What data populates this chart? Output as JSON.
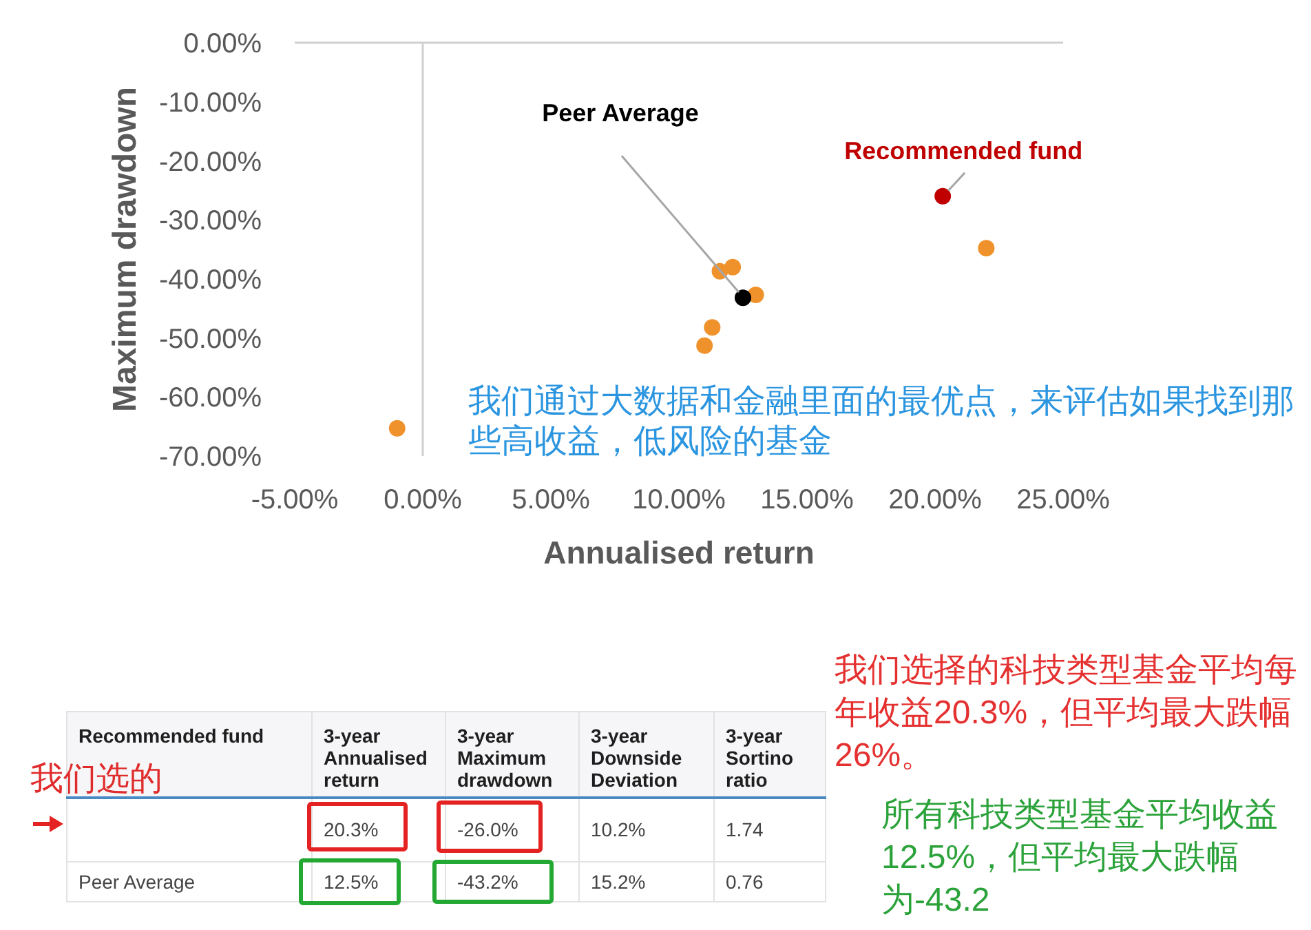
{
  "chart_data": [
    {
      "type": "scatter",
      "xlabel": "Annualised return",
      "ylabel": "Maximum drawdown",
      "series": [
        {
          "color": "#f0922b",
          "x": [
            -1.0,
            11.6,
            12.1,
            13.0,
            11.3,
            11.0,
            22.0
          ],
          "values": [
            -65.3,
            -38.7,
            -38.0,
            -42.7,
            -48.2,
            -51.3,
            -34.8
          ]
        },
        {
          "name": "Peer Average",
          "color": "#000000",
          "x": [
            12.5
          ],
          "values": [
            -43.2
          ]
        },
        {
          "name": "Recommended fund",
          "color": "#c00000",
          "x": [
            20.3
          ],
          "values": [
            -26.0
          ]
        }
      ],
      "xlim": [
        -5,
        25
      ],
      "xticks": [
        {
          "value": -5,
          "label": "-5.00%"
        },
        {
          "value": 0,
          "label": "0.00%"
        },
        {
          "value": 5,
          "label": "5.00%"
        },
        {
          "value": 10,
          "label": "10.00%"
        },
        {
          "value": 15,
          "label": "15.00%"
        },
        {
          "value": 20,
          "label": "20.00%"
        },
        {
          "value": 25,
          "label": "25.00%"
        }
      ],
      "ylim": [
        -70,
        0
      ],
      "yticks": [
        {
          "value": 0,
          "label": "0.00%"
        },
        {
          "value": -10,
          "label": "-10.00%"
        },
        {
          "value": -20,
          "label": "-20.00%"
        },
        {
          "value": -30,
          "label": "-30.00%"
        },
        {
          "value": -40,
          "label": "-40.00%"
        },
        {
          "value": -50,
          "label": "-50.00%"
        },
        {
          "value": -60,
          "label": "-60.00%"
        },
        {
          "value": -70,
          "label": "-70.00%"
        }
      ],
      "ref_lines": [
        {
          "axis": "x",
          "value": 0,
          "color": "#d0d0d0"
        }
      ],
      "grid": false,
      "legend": false,
      "marker": "circle",
      "annotations": [
        "我们通过大数据和金融里面的最优点，来评估如果找到那些高收益，低风险的基金"
      ]
    },
    {
      "type": "other",
      "categories": [
        "Recommended fund",
        "3-year Annualised return",
        "3-year Maximum drawdown",
        "3-year Downside Deviation",
        "3-year Sortino ratio"
      ],
      "cell_labels": [
        [
          null,
          "20.3%",
          "-26.0%",
          "10.2%",
          "1.74"
        ],
        [
          "Peer Average",
          "12.5%",
          "-43.2%",
          "15.2%",
          "0.76"
        ]
      ],
      "annotations": [
        "我们选的",
        "我们选择的科技类型基金平均每年收益20.3%，但平均最大跌幅26%。",
        "所有科技类型基金平均收益12.5%，但平均最大跌幅为-43.2"
      ]
    }
  ]
}
